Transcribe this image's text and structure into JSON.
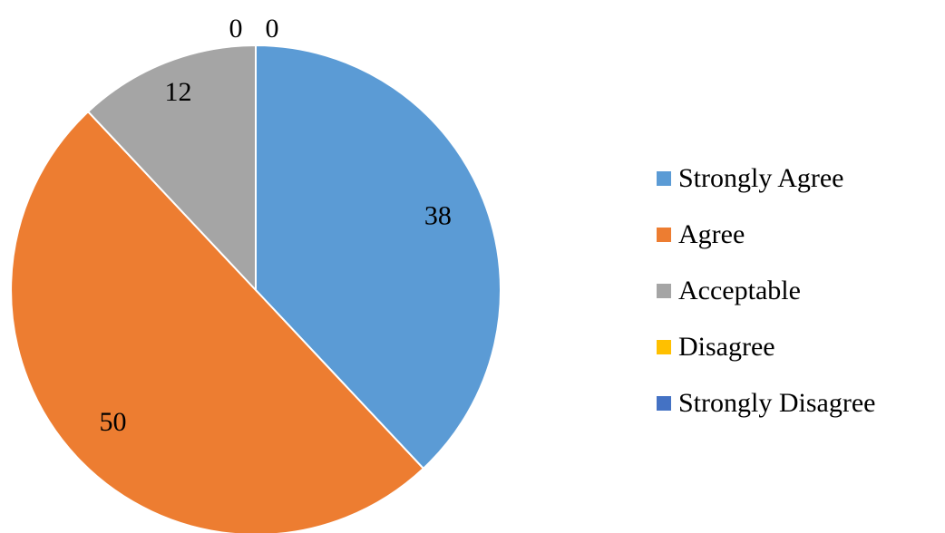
{
  "chart_data": {
    "type": "pie",
    "categories": [
      "Strongly Agree",
      "Agree",
      "Acceptable",
      "Disagree",
      "Strongly Disagree"
    ],
    "values": [
      38,
      50,
      12,
      0,
      0
    ],
    "colors": [
      "#5B9BD5",
      "#ED7D31",
      "#A5A5A5",
      "#FFC000",
      "#4472C4"
    ],
    "data_labels": [
      "38",
      "50",
      "12",
      "0",
      "0"
    ],
    "start_angle": "12 o'clock",
    "direction": "clockwise",
    "legend_position": "right"
  }
}
